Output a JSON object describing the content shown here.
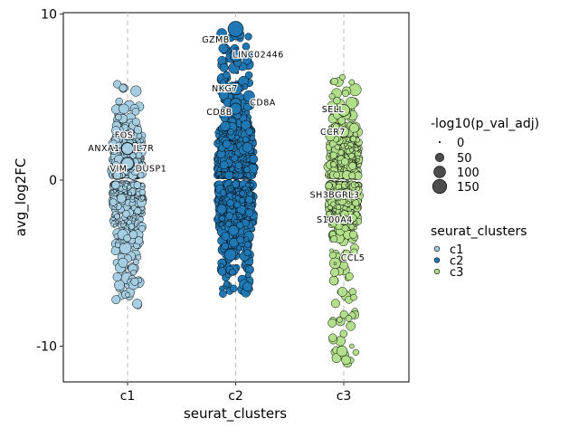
{
  "chart_data": {
    "type": "scatter",
    "subtype": "jitter-strip",
    "xlabel": "seurat_clusters",
    "ylabel": "avg_log2FC",
    "categories": [
      "c1",
      "c2",
      "c3"
    ],
    "ylim": [
      -12.2,
      10.1
    ],
    "yticks": [
      10,
      0,
      -10
    ],
    "ytick_labels": [
      "10",
      "0",
      "-10"
    ],
    "grid": false,
    "cluster_colors": {
      "c1": "#a6cee3",
      "c2": "#1f78b4",
      "c3": "#b2df8a"
    },
    "cluster_ranges": {
      "c1": [
        -7.6,
        5.8
      ],
      "c2": [
        -6.9,
        9.1
      ],
      "c3": [
        -11.2,
        6.2
      ]
    },
    "labeled_genes": [
      {
        "gene": "GZMB",
        "cluster": "c2",
        "avg_log2FC": 9.1,
        "neg_log10_p": 160
      },
      {
        "gene": "LINC02446",
        "cluster": "c2",
        "avg_log2FC": 7.5,
        "neg_log10_p": 90
      },
      {
        "gene": "NKG7",
        "cluster": "c2",
        "avg_log2FC": 5.5,
        "neg_log10_p": 100
      },
      {
        "gene": "CD8A",
        "cluster": "c2",
        "avg_log2FC": 4.6,
        "neg_log10_p": 80
      },
      {
        "gene": "CD8B",
        "cluster": "c2",
        "avg_log2FC": 4.3,
        "neg_log10_p": 80
      },
      {
        "gene": "FOS",
        "cluster": "c1",
        "avg_log2FC": 2.7,
        "neg_log10_p": 60
      },
      {
        "gene": "ANXA1",
        "cluster": "c1",
        "avg_log2FC": 1.9,
        "neg_log10_p": 100
      },
      {
        "gene": "IL7R",
        "cluster": "c1",
        "avg_log2FC": 1.9,
        "neg_log10_p": 90
      },
      {
        "gene": "VIM",
        "cluster": "c1",
        "avg_log2FC": 1.0,
        "neg_log10_p": 120
      },
      {
        "gene": "DUSP1",
        "cluster": "c1",
        "avg_log2FC": 1.0,
        "neg_log10_p": 90
      },
      {
        "gene": "SELL",
        "cluster": "c3",
        "avg_log2FC": 4.2,
        "neg_log10_p": 90
      },
      {
        "gene": "CCR7",
        "cluster": "c3",
        "avg_log2FC": 2.9,
        "neg_log10_p": 70
      },
      {
        "gene": "SH3BGRL3",
        "cluster": "c3",
        "avg_log2FC": -0.9,
        "neg_log10_p": 50
      },
      {
        "gene": "S100A4",
        "cluster": "c3",
        "avg_log2FC": -2.4,
        "neg_log10_p": 60
      },
      {
        "gene": "CCL5",
        "cluster": "c3",
        "avg_log2FC": -4.7,
        "neg_log10_p": 40
      }
    ],
    "legend_size": {
      "title": "-log10(p_val_adj)",
      "entries": [
        "0",
        "50",
        "100",
        "150"
      ],
      "values": [
        0,
        50,
        100,
        150
      ]
    },
    "legend_color": {
      "title": "seurat_clusters",
      "entries": [
        "c1",
        "c2",
        "c3"
      ]
    },
    "legend_position": "right"
  }
}
